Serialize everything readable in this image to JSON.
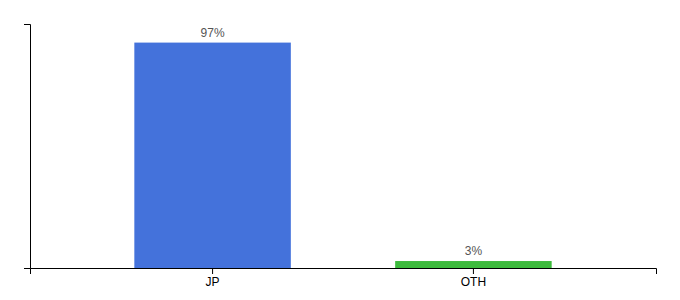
{
  "chart_data": {
    "type": "bar",
    "categories": [
      "JP",
      "OTH"
    ],
    "values": [
      97,
      3
    ],
    "colors": [
      "#4472db",
      "#3dbb3d"
    ],
    "ylim": [
      0,
      105
    ],
    "yticks": [],
    "grid": false,
    "data_labels": true,
    "value_labels": [
      "97%",
      "3%"
    ],
    "tick_labels": "x"
  }
}
